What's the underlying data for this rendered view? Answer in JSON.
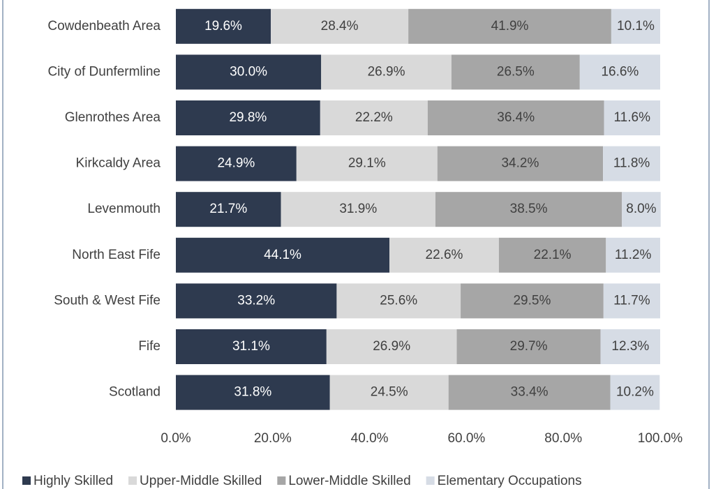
{
  "chart_data": {
    "type": "stacked-bar-horizontal",
    "categories": [
      "Cowdenbeath Area",
      "City of Dunfermline",
      "Glenrothes Area",
      "Kirkcaldy Area",
      "Levenmouth",
      "North East Fife",
      "South & West Fife",
      "Fife",
      "Scotland"
    ],
    "series": [
      {
        "name": "Highly Skilled",
        "color": "#2e3a4f",
        "values": [
          19.6,
          30.0,
          29.8,
          24.9,
          21.7,
          44.1,
          33.2,
          31.1,
          31.8
        ],
        "value_labels": [
          "19.6%",
          "30.0%",
          "29.8%",
          "24.9%",
          "21.7%",
          "44.1%",
          "33.2%",
          "31.1%",
          "31.8%"
        ]
      },
      {
        "name": "Upper-Middle Skilled",
        "color": "#d9d9d9",
        "values": [
          28.4,
          26.9,
          22.2,
          29.1,
          31.9,
          22.6,
          25.6,
          26.9,
          24.5
        ],
        "value_labels": [
          "28.4%",
          "26.9%",
          "22.2%",
          "29.1%",
          "31.9%",
          "22.6%",
          "25.6%",
          "26.9%",
          "24.5%"
        ]
      },
      {
        "name": "Lower-Middle Skilled",
        "color": "#a6a6a6",
        "values": [
          41.9,
          26.5,
          36.4,
          34.2,
          38.5,
          22.1,
          29.5,
          29.7,
          33.4
        ],
        "value_labels": [
          "41.9%",
          "26.5%",
          "36.4%",
          "34.2%",
          "38.5%",
          "22.1%",
          "29.5%",
          "29.7%",
          "33.4%"
        ]
      },
      {
        "name": "Elementary Occupations",
        "color": "#d6dce5",
        "values": [
          10.1,
          16.6,
          11.6,
          11.8,
          8.0,
          11.2,
          11.7,
          12.3,
          10.2
        ],
        "value_labels": [
          "10.1%",
          "16.6%",
          "11.6%",
          "11.8%",
          "8.0%",
          "11.2%",
          "11.7%",
          "12.3%",
          "10.2%"
        ]
      }
    ],
    "xlim": [
      0,
      100
    ],
    "xticks": [
      {
        "value": 0,
        "label": "0.0%"
      },
      {
        "value": 20,
        "label": "20.0%"
      },
      {
        "value": 40,
        "label": "40.0%"
      },
      {
        "value": 60,
        "label": "60.0%"
      },
      {
        "value": 80,
        "label": "80.0%"
      },
      {
        "value": 100,
        "label": "100.0%"
      }
    ],
    "legend": "bottom"
  }
}
